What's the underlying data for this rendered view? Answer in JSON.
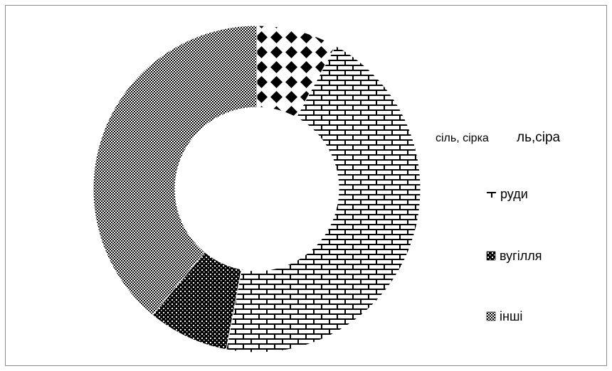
{
  "chart_data": {
    "type": "pie",
    "variant": "doughnut",
    "title": "",
    "categories": [
      "сіль, сірка",
      "руди",
      "вугілля",
      "інші"
    ],
    "values": [
      8,
      45,
      8,
      39
    ],
    "patterns": [
      "diamond-checker",
      "brick",
      "dense-dots",
      "fine-grid"
    ],
    "legend_position": "right",
    "overlapping_legend_fragment": "ль,сіра"
  }
}
